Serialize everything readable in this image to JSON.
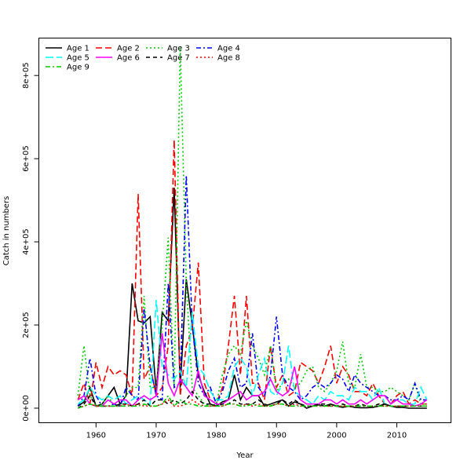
{
  "chart_data": {
    "type": "line",
    "title": "",
    "xlabel": "Year",
    "ylabel": "Catch in numbers",
    "xlim": [
      1950.5,
      2019
    ],
    "ylim": [
      -35000,
      890000
    ],
    "x_ticks": [
      1960,
      1970,
      1980,
      1990,
      2000,
      2010
    ],
    "y_ticks": [
      0,
      200000,
      400000,
      600000,
      800000
    ],
    "x_tick_labels": [
      "1960",
      "1970",
      "1980",
      "1990",
      "2000",
      "2010"
    ],
    "y_tick_labels": [
      "0e+00",
      "2e+05",
      "4e+05",
      "6e+05",
      "8e+05"
    ],
    "legend_position": "top-left",
    "grid": false,
    "series": [
      {
        "name": "Age 1",
        "color": "#000000",
        "dash": "solid",
        "x_start": 1957,
        "values": [
          5000,
          15000,
          50000,
          5000,
          10000,
          30000,
          50000,
          10000,
          30000,
          300000,
          210000,
          205000,
          220000,
          40000,
          230000,
          210000,
          530000,
          50000,
          310000,
          200000,
          80000,
          40000,
          10000,
          5000,
          15000,
          20000,
          80000,
          20000,
          50000,
          30000,
          30000,
          5000,
          10000,
          15000,
          20000,
          5000,
          15000,
          10000,
          0,
          5000,
          8000,
          5000,
          10000,
          5000,
          2000,
          5000,
          2000,
          1000,
          1000,
          2000,
          5000,
          10000,
          5000,
          2000,
          2000,
          0,
          0,
          0,
          0
        ]
      },
      {
        "name": "Age 2",
        "color": "#ff0000",
        "dash": "long",
        "x_start": 1957,
        "values": [
          20000,
          60000,
          10000,
          110000,
          50000,
          100000,
          80000,
          90000,
          80000,
          30000,
          515000,
          70000,
          100000,
          30000,
          50000,
          150000,
          645000,
          30000,
          150000,
          190000,
          350000,
          60000,
          20000,
          10000,
          50000,
          150000,
          270000,
          80000,
          270000,
          60000,
          60000,
          20000,
          150000,
          50000,
          80000,
          30000,
          40000,
          110000,
          100000,
          90000,
          60000,
          100000,
          150000,
          60000,
          100000,
          80000,
          40000,
          40000,
          30000,
          60000,
          30000,
          10000,
          10000,
          30000,
          40000,
          10000,
          20000,
          10000,
          10000
        ]
      },
      {
        "name": "Age 3",
        "color": "#00cc00",
        "dash": "dot",
        "x_start": 1957,
        "values": [
          30000,
          150000,
          30000,
          5000,
          10000,
          30000,
          5000,
          5000,
          30000,
          50000,
          50000,
          270000,
          50000,
          50000,
          200000,
          410000,
          50000,
          870000,
          300000,
          50000,
          30000,
          10000,
          5000,
          10000,
          80000,
          130000,
          150000,
          130000,
          210000,
          150000,
          120000,
          80000,
          150000,
          40000,
          60000,
          70000,
          50000,
          60000,
          90000,
          100000,
          50000,
          40000,
          60000,
          90000,
          160000,
          60000,
          50000,
          130000,
          50000,
          50000,
          40000,
          40000,
          50000,
          40000,
          30000,
          20000,
          60000,
          10000,
          10000
        ]
      },
      {
        "name": "Age 4",
        "color": "#0000ff",
        "dash": "dashdot",
        "x_start": 1957,
        "values": [
          5000,
          30000,
          120000,
          30000,
          5000,
          5000,
          10000,
          5000,
          50000,
          30000,
          20000,
          240000,
          100000,
          30000,
          20000,
          300000,
          50000,
          60000,
          560000,
          200000,
          60000,
          30000,
          50000,
          10000,
          40000,
          90000,
          120000,
          50000,
          60000,
          180000,
          50000,
          30000,
          80000,
          220000,
          80000,
          50000,
          40000,
          20000,
          30000,
          50000,
          60000,
          50000,
          60000,
          80000,
          70000,
          40000,
          80000,
          60000,
          50000,
          40000,
          30000,
          30000,
          20000,
          20000,
          30000,
          20000,
          60000,
          20000,
          20000
        ]
      },
      {
        "name": "Age 5",
        "color": "#00ffff",
        "dash": "longdash",
        "x_start": 1957,
        "values": [
          10000,
          20000,
          50000,
          30000,
          20000,
          30000,
          20000,
          30000,
          10000,
          20000,
          30000,
          20000,
          10000,
          260000,
          100000,
          80000,
          70000,
          90000,
          50000,
          230000,
          100000,
          80000,
          40000,
          20000,
          20000,
          30000,
          100000,
          120000,
          100000,
          30000,
          80000,
          120000,
          40000,
          30000,
          60000,
          150000,
          40000,
          30000,
          20000,
          10000,
          30000,
          20000,
          40000,
          30000,
          30000,
          20000,
          50000,
          40000,
          40000,
          20000,
          50000,
          10000,
          10000,
          20000,
          20000,
          10000,
          10000,
          50000,
          20000
        ]
      },
      {
        "name": "Age 6",
        "color": "#ff00ff",
        "dash": "solid",
        "x_start": 1957,
        "values": [
          20000,
          30000,
          10000,
          5000,
          5000,
          20000,
          10000,
          20000,
          20000,
          5000,
          20000,
          30000,
          20000,
          30000,
          180000,
          60000,
          30000,
          70000,
          50000,
          30000,
          90000,
          30000,
          20000,
          10000,
          10000,
          20000,
          30000,
          40000,
          20000,
          30000,
          30000,
          40000,
          70000,
          40000,
          30000,
          40000,
          100000,
          20000,
          10000,
          10000,
          10000,
          20000,
          20000,
          10000,
          20000,
          10000,
          10000,
          20000,
          10000,
          20000,
          30000,
          30000,
          10000,
          20000,
          10000,
          10000,
          5000,
          10000,
          20000
        ]
      },
      {
        "name": "Age 7",
        "color": "#000000",
        "dash": "dash",
        "x_start": 1957,
        "values": [
          0,
          10000,
          30000,
          5000,
          5000,
          5000,
          5000,
          10000,
          10000,
          5000,
          10000,
          20000,
          5000,
          20000,
          20000,
          10000,
          20000,
          10000,
          20000,
          40000,
          20000,
          10000,
          10000,
          5000,
          10000,
          10000,
          20000,
          10000,
          10000,
          10000,
          20000,
          10000,
          5000,
          10000,
          20000,
          10000,
          20000,
          10000,
          5000,
          5000,
          10000,
          10000,
          5000,
          5000,
          10000,
          5000,
          5000,
          10000,
          5000,
          5000,
          10000,
          10000,
          5000,
          5000,
          5000,
          5000,
          5000,
          5000,
          5000
        ]
      },
      {
        "name": "Age 8",
        "color": "#ff0000",
        "dash": "dot",
        "x_start": 1957,
        "values": [
          0,
          5000,
          10000,
          5000,
          5000,
          5000,
          5000,
          5000,
          10000,
          5000,
          10000,
          5000,
          5000,
          5000,
          10000,
          20000,
          5000,
          5000,
          10000,
          20000,
          10000,
          5000,
          5000,
          5000,
          5000,
          10000,
          10000,
          5000,
          10000,
          5000,
          10000,
          5000,
          5000,
          10000,
          10000,
          5000,
          10000,
          5000,
          5000,
          5000,
          5000,
          5000,
          5000,
          5000,
          5000,
          5000,
          5000,
          5000,
          5000,
          5000,
          5000,
          5000,
          5000,
          5000,
          5000,
          5000,
          5000,
          5000,
          5000
        ]
      },
      {
        "name": "Age 9",
        "color": "#00cc00",
        "dash": "dashdot",
        "x_start": 1957,
        "values": [
          0,
          5000,
          10000,
          5000,
          5000,
          5000,
          5000,
          5000,
          5000,
          5000,
          5000,
          10000,
          5000,
          5000,
          10000,
          30000,
          5000,
          20000,
          10000,
          10000,
          5000,
          5000,
          5000,
          5000,
          5000,
          10000,
          10000,
          5000,
          5000,
          10000,
          5000,
          5000,
          5000,
          10000,
          10000,
          5000,
          5000,
          5000,
          5000,
          5000,
          5000,
          5000,
          5000,
          5000,
          5000,
          5000,
          5000,
          5000,
          5000,
          5000,
          5000,
          5000,
          5000,
          5000,
          5000,
          5000,
          5000,
          5000,
          5000
        ]
      }
    ]
  }
}
